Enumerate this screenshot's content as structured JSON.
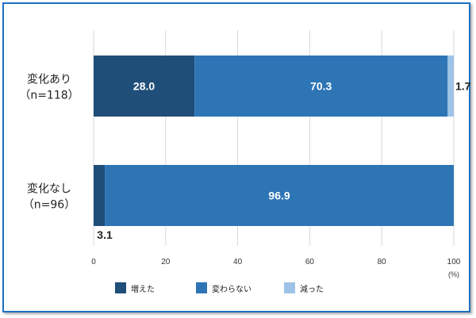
{
  "chart_data": {
    "type": "bar",
    "orientation": "horizontal",
    "stacked": true,
    "categories": [
      [
        "変化あり",
        "（n=118）"
      ],
      [
        "変化なし",
        "（n=96）"
      ]
    ],
    "series": [
      {
        "name": "増えた",
        "values": [
          28.0,
          3.1
        ],
        "labels": [
          "28.0",
          "3.1"
        ],
        "color": "#1f4e79"
      },
      {
        "name": "変わらない",
        "values": [
          70.3,
          96.9
        ],
        "labels": [
          "70.3",
          "96.9"
        ],
        "color": "#2e75b6"
      },
      {
        "name": "減った",
        "values": [
          1.7,
          0
        ],
        "labels": [
          "1.7",
          ""
        ],
        "color": "#9dc3e6"
      }
    ],
    "xlim": [
      0,
      100
    ],
    "xticks": [
      "0",
      "20",
      "40",
      "60",
      "80",
      "100"
    ],
    "xunit": "(%)",
    "grid": true,
    "legend": "bottom"
  }
}
